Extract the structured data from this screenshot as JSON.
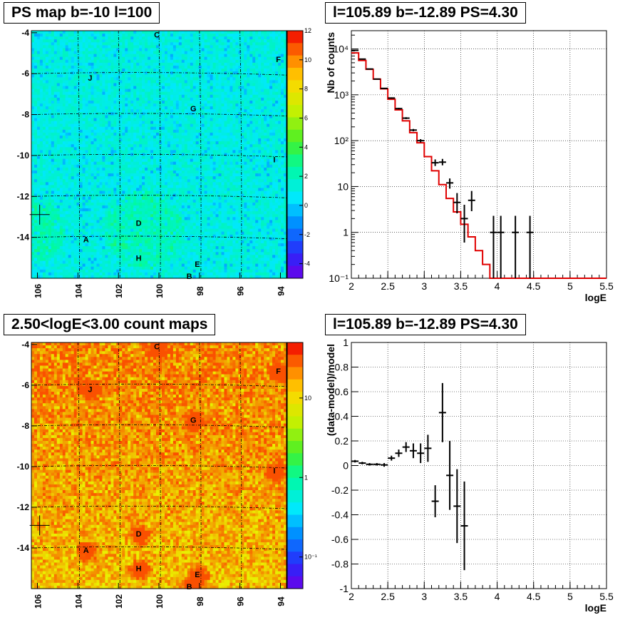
{
  "chart_data": [
    {
      "type": "heatmap",
      "title": "PS map b=-10 l=100",
      "x_ticks": [
        106,
        104,
        102,
        100,
        98,
        96,
        94
      ],
      "y_ticks": [
        -4,
        -6,
        -8,
        -10,
        -12,
        -14
      ],
      "xlim": [
        106.3,
        93.7
      ],
      "ylim": [
        -16,
        -3.9
      ],
      "colorbar": {
        "scale": "linear",
        "range": [
          -5,
          12
        ],
        "ticks": [
          12,
          10,
          8,
          6,
          4,
          2,
          0,
          -2,
          -4
        ]
      },
      "sources": [
        {
          "label": "C",
          "l": 100.1,
          "b": -4.1
        },
        {
          "label": "F",
          "l": 94.1,
          "b": -5.3
        },
        {
          "label": "J",
          "l": 103.4,
          "b": -6.2
        },
        {
          "label": "G",
          "l": 98.3,
          "b": -7.7
        },
        {
          "label": "I",
          "l": 94.3,
          "b": -10.2
        },
        {
          "label": "D",
          "l": 101.0,
          "b": -13.3
        },
        {
          "label": "A",
          "l": 103.6,
          "b": -14.1
        },
        {
          "label": "H",
          "l": 101.0,
          "b": -15.0
        },
        {
          "label": "E",
          "l": 98.1,
          "b": -15.3
        },
        {
          "label": "B",
          "l": 98.5,
          "b": -15.9
        }
      ],
      "marker": {
        "l": 105.89,
        "b": -12.89
      }
    },
    {
      "type": "line",
      "title": "l=105.89 b=-12.89 PS=4.30",
      "xlabel": "logE",
      "ylabel": "Nb of counts",
      "xlim": [
        2,
        5.5
      ],
      "ylim": [
        0.1,
        25000
      ],
      "yscale": "log",
      "x_ticks": [
        2,
        2.5,
        3,
        3.5,
        4,
        4.5,
        5,
        5.5
      ],
      "y_ticks": [
        {
          "v": 0.1,
          "label": "10⁻¹"
        },
        {
          "v": 1,
          "label": "1"
        },
        {
          "v": 10,
          "label": "10"
        },
        {
          "v": 100,
          "label": "10²"
        },
        {
          "v": 1000,
          "label": "10³"
        },
        {
          "v": 10000,
          "label": "10⁴"
        }
      ],
      "grid": true,
      "model": {
        "edges": [
          2,
          2.1,
          2.2,
          2.3,
          2.4,
          2.5,
          2.6,
          2.7,
          2.8,
          2.9,
          3.0,
          3.1,
          3.2,
          3.3,
          3.4,
          3.5,
          3.6,
          3.7,
          3.8,
          3.9,
          4.0,
          4.1,
          4.2,
          4.3,
          5.5
        ],
        "values": [
          8200,
          5600,
          3600,
          2200,
          1350,
          800,
          470,
          270,
          150,
          90,
          45,
          22,
          11,
          5.5,
          2.8,
          1.5,
          0.8,
          0.4,
          0.2,
          0.1,
          0.1,
          0.1,
          0.1,
          0.1
        ]
      },
      "data": [
        {
          "x": 2.05,
          "y": 9300,
          "lo": 9100,
          "hi": 9500
        },
        {
          "x": 2.15,
          "y": 6000,
          "lo": 5850,
          "hi": 6150
        },
        {
          "x": 2.25,
          "y": 3650,
          "lo": 3550,
          "hi": 3750
        },
        {
          "x": 2.35,
          "y": 2200,
          "lo": 2150,
          "hi": 2250
        },
        {
          "x": 2.45,
          "y": 1380,
          "lo": 1340,
          "hi": 1420
        },
        {
          "x": 2.55,
          "y": 850,
          "lo": 820,
          "hi": 880
        },
        {
          "x": 2.65,
          "y": 500,
          "lo": 480,
          "hi": 520
        },
        {
          "x": 2.75,
          "y": 310,
          "lo": 295,
          "hi": 325
        },
        {
          "x": 2.85,
          "y": 170,
          "lo": 160,
          "hi": 180
        },
        {
          "x": 2.95,
          "y": 100,
          "lo": 92,
          "hi": 108
        },
        {
          "x": 3.15,
          "y": 33,
          "lo": 28,
          "hi": 39
        },
        {
          "x": 3.25,
          "y": 34,
          "lo": 29,
          "hi": 40
        },
        {
          "x": 3.35,
          "y": 12,
          "lo": 9,
          "hi": 15
        },
        {
          "x": 3.45,
          "y": 4.5,
          "lo": 2.6,
          "hi": 7.2
        },
        {
          "x": 3.55,
          "y": 2,
          "lo": 0.6,
          "hi": 4.0
        },
        {
          "x": 3.65,
          "y": 5,
          "lo": 2.9,
          "hi": 8.0
        },
        {
          "x": 3.95,
          "y": 1,
          "lo": 0.1,
          "hi": 2.3
        },
        {
          "x": 4.05,
          "y": 1,
          "lo": 0.1,
          "hi": 2.3
        },
        {
          "x": 4.25,
          "y": 1,
          "lo": 0.1,
          "hi": 2.3
        },
        {
          "x": 4.45,
          "y": 1,
          "lo": 0.1,
          "hi": 2.3
        }
      ]
    },
    {
      "type": "heatmap",
      "title": "2.50<logE<3.00 count maps",
      "x_ticks": [
        106,
        104,
        102,
        100,
        98,
        96,
        94
      ],
      "y_ticks": [
        -4,
        -6,
        -8,
        -10,
        -12,
        -14
      ],
      "xlim": [
        106.3,
        93.7
      ],
      "ylim": [
        -16,
        -3.9
      ],
      "colorbar": {
        "scale": "log",
        "range": [
          0.04,
          50
        ],
        "ticks": [
          {
            "v": 10,
            "label": "10"
          },
          {
            "v": 1,
            "label": "1"
          },
          {
            "v": 0.1,
            "label": "10⁻¹"
          }
        ]
      },
      "sources": [
        {
          "label": "C",
          "l": 100.1,
          "b": -4.1
        },
        {
          "label": "F",
          "l": 94.1,
          "b": -5.3
        },
        {
          "label": "J",
          "l": 103.4,
          "b": -6.2
        },
        {
          "label": "G",
          "l": 98.3,
          "b": -7.7
        },
        {
          "label": "I",
          "l": 94.3,
          "b": -10.2
        },
        {
          "label": "D",
          "l": 101.0,
          "b": -13.3
        },
        {
          "label": "A",
          "l": 103.6,
          "b": -14.1
        },
        {
          "label": "H",
          "l": 101.0,
          "b": -15.0
        },
        {
          "label": "E",
          "l": 98.1,
          "b": -15.3
        },
        {
          "label": "B",
          "l": 98.5,
          "b": -15.9
        }
      ],
      "marker": {
        "l": 105.89,
        "b": -12.89
      }
    },
    {
      "type": "scatter",
      "title": "l=105.89 b=-12.89 PS=4.30",
      "xlabel": "logE",
      "ylabel": "(data-model)/model",
      "xlim": [
        2,
        5.5
      ],
      "ylim": [
        -1,
        1
      ],
      "x_ticks": [
        2,
        2.5,
        3,
        3.5,
        4,
        4.5,
        5,
        5.5
      ],
      "y_ticks": [
        -1,
        -0.8,
        -0.6,
        -0.4,
        -0.2,
        0,
        0.2,
        0.4,
        0.6,
        0.8,
        1
      ],
      "grid": true,
      "data": [
        {
          "x": 2.05,
          "y": 0.035,
          "err": 0.01
        },
        {
          "x": 2.15,
          "y": 0.02,
          "err": 0.01
        },
        {
          "x": 2.25,
          "y": 0.01,
          "err": 0.01
        },
        {
          "x": 2.35,
          "y": 0.01,
          "err": 0.01
        },
        {
          "x": 2.45,
          "y": 0.005,
          "err": 0.015
        },
        {
          "x": 2.55,
          "y": 0.06,
          "err": 0.02
        },
        {
          "x": 2.65,
          "y": 0.1,
          "err": 0.03
        },
        {
          "x": 2.75,
          "y": 0.15,
          "err": 0.04
        },
        {
          "x": 2.85,
          "y": 0.12,
          "err": 0.06
        },
        {
          "x": 2.95,
          "y": 0.1,
          "err": 0.08
        },
        {
          "x": 3.05,
          "y": 0.14,
          "err": 0.11
        },
        {
          "x": 3.15,
          "y": -0.29,
          "err": 0.13
        },
        {
          "x": 3.25,
          "y": 0.43,
          "err": 0.24
        },
        {
          "x": 3.35,
          "y": -0.08,
          "err": 0.28
        },
        {
          "x": 3.45,
          "y": -0.33,
          "err": 0.3
        },
        {
          "x": 3.55,
          "y": -0.49,
          "err": 0.36
        }
      ]
    }
  ]
}
